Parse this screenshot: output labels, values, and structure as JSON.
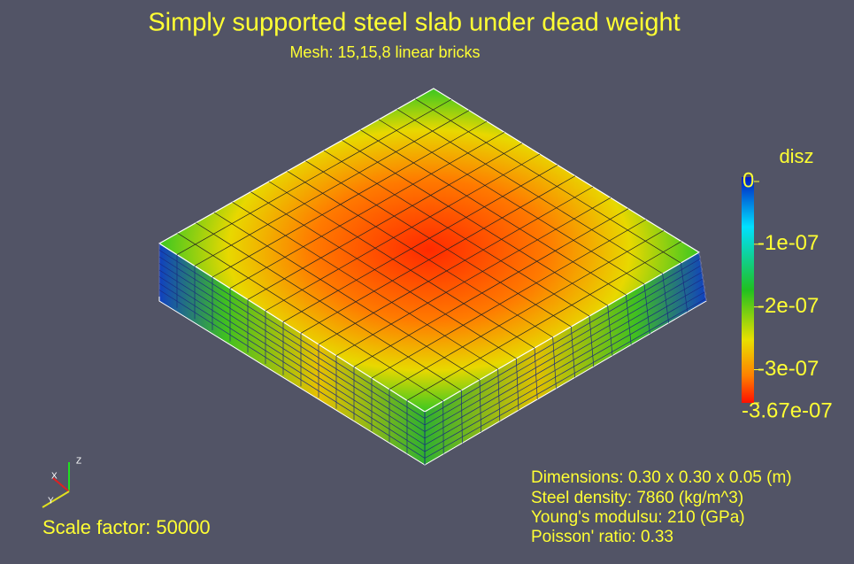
{
  "header": {
    "title": "Simply supported steel slab under dead weight",
    "subtitle": "Mesh: 15,15,8 linear bricks"
  },
  "colorbar": {
    "title": "disz",
    "ticks": [
      0,
      {
        "value": -1e-07,
        "label": "-1e-07"
      },
      {
        "value": -2e-07,
        "label": "-2e-07"
      },
      {
        "value": -3e-07,
        "label": "-3e-07"
      },
      {
        "value": -3.67e-07,
        "label": "-3.67e-07"
      }
    ]
  },
  "annotations": [
    "Dimensions: 0.30 x 0.30 x 0.05 (m)",
    "Steel density: 7860 (kg/m^3)",
    "Young's modulsu: 210 (GPa)",
    "Poisson' ratio: 0.33"
  ],
  "scale_factor": "Scale factor: 50000",
  "axes": {
    "x": "X",
    "y": "Y",
    "z": "Z"
  }
}
